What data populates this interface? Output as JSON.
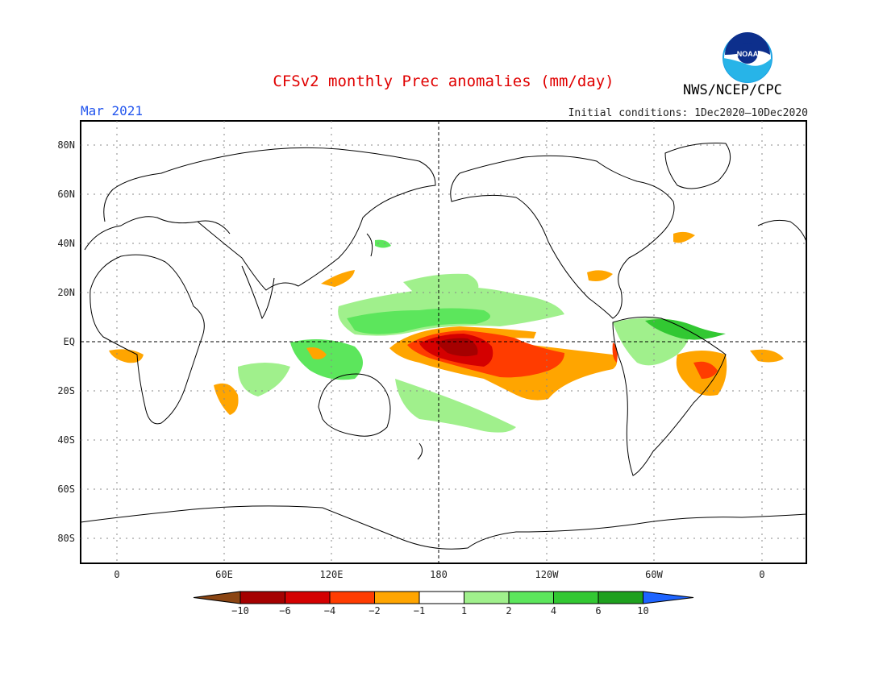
{
  "title": "CFSv2 monthly Prec anomalies (mm/day)",
  "valid_month": "Mar 2021",
  "initial_conditions": "Initial conditions: 1Dec2020–10Dec2020",
  "agency": "NWS/NCEP/CPC",
  "logo_text": "NOAA",
  "lat_labels": [
    "80N",
    "60N",
    "40N",
    "20N",
    "EQ",
    "20S",
    "40S",
    "60S",
    "80S"
  ],
  "lon_labels": [
    "0",
    "60E",
    "120E",
    "180",
    "120W",
    "60W",
    "0"
  ],
  "colorbar": {
    "labels": [
      "−10",
      "−6",
      "−4",
      "−2",
      "−1",
      "1",
      "2",
      "4",
      "6",
      "10"
    ],
    "colors": [
      "#8b4513",
      "#a50000",
      "#d40000",
      "#ff3c00",
      "#ffa500",
      "#ffffff",
      "#a0f08c",
      "#5ce65c",
      "#32c832",
      "#1ea01e",
      "#1e64ff"
    ]
  }
}
